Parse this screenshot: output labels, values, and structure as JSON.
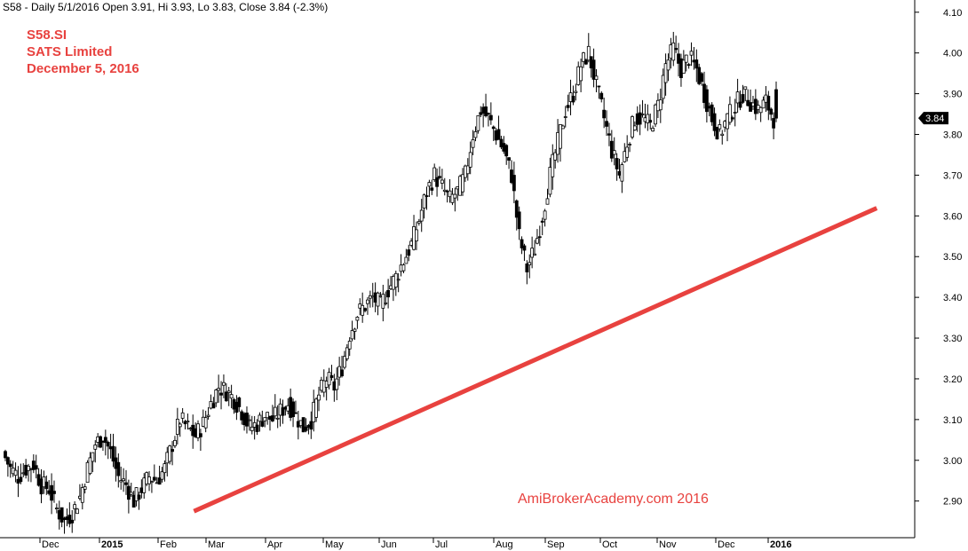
{
  "header": {
    "quote_line": "S58 - Daily 5/1/2016 Open 3.91, Hi 3.93, Lo 3.83, Close 3.84 (-2.3%)"
  },
  "title_block": {
    "ticker": "S58.SI",
    "company": "SATS Limited",
    "date": "December 5, 2016"
  },
  "watermark": "AmiBrokerAcademy.com  2016",
  "colors": {
    "candles": "#000000",
    "trendline": "#e8423f",
    "annotation_text": "#e8423f",
    "axis": "#000000",
    "price_marker_bg": "#000000",
    "price_marker_text": "#ffffff"
  },
  "chart_data": {
    "type": "bar",
    "subtype": "daily-ohlc",
    "symbol": "S58",
    "ylim": [
      2.81,
      4.13
    ],
    "y_axis_position": "right",
    "y_ticks": [
      "2.90",
      "3.00",
      "3.10",
      "3.20",
      "3.30",
      "3.40",
      "3.50",
      "3.60",
      "3.70",
      "3.80",
      "3.90",
      "4.00",
      "4.10"
    ],
    "x_ticks": [
      {
        "label": "Dec",
        "bold": false
      },
      {
        "label": "2015",
        "bold": true
      },
      {
        "label": "Feb",
        "bold": false
      },
      {
        "label": "Mar",
        "bold": false
      },
      {
        "label": "Apr",
        "bold": false
      },
      {
        "label": "May",
        "bold": false
      },
      {
        "label": "Jun",
        "bold": false
      },
      {
        "label": "Jul",
        "bold": false
      },
      {
        "label": "Aug",
        "bold": false
      },
      {
        "label": "Sep",
        "bold": false
      },
      {
        "label": "Oct",
        "bold": false
      },
      {
        "label": "Nov",
        "bold": false
      },
      {
        "label": "Dec",
        "bold": false
      },
      {
        "label": "2016",
        "bold": true
      }
    ],
    "last_close_label": "3.84",
    "grid": false,
    "legend": "none",
    "closes": [
      3.02,
      2.98,
      2.96,
      2.98,
      2.99,
      2.94,
      2.93,
      2.88,
      2.85,
      2.87,
      2.91,
      2.98,
      3.04,
      3.06,
      3.02,
      2.96,
      2.94,
      2.9,
      2.93,
      2.96,
      2.95,
      2.98,
      3.04,
      3.1,
      3.08,
      3.06,
      3.09,
      3.14,
      3.18,
      3.17,
      3.15,
      3.12,
      3.08,
      3.09,
      3.11,
      3.1,
      3.12,
      3.14,
      3.11,
      3.08,
      3.1,
      3.16,
      3.2,
      3.18,
      3.23,
      3.31,
      3.36,
      3.38,
      3.4,
      3.38,
      3.42,
      3.45,
      3.49,
      3.53,
      3.59,
      3.66,
      3.7,
      3.67,
      3.64,
      3.66,
      3.7,
      3.8,
      3.86,
      3.84,
      3.8,
      3.76,
      3.7,
      3.55,
      3.47,
      3.52,
      3.6,
      3.7,
      3.78,
      3.86,
      3.9,
      3.97,
      4.0,
      3.92,
      3.84,
      3.76,
      3.7,
      3.78,
      3.84,
      3.84,
      3.82,
      3.87,
      3.97,
      4.01,
      3.96,
      3.99,
      3.96,
      3.9,
      3.84,
      3.8,
      3.84,
      3.87,
      3.9,
      3.88,
      3.86,
      3.88,
      3.84
    ],
    "trendline": {
      "start": [
        0.212,
        2.875
      ],
      "end": [
        1.0,
        3.619
      ],
      "label": ""
    }
  }
}
